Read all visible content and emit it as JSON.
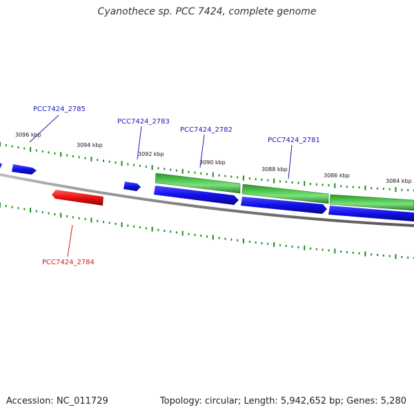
{
  "title": "Cyanothece sp. PCC 7424, complete genome",
  "footer": {
    "accession": "Accession: NC_011729",
    "summary": "Topology: circular; Length: 5,942,652 bp; Genes: 5,280"
  },
  "colors": {
    "background": "#ffffff",
    "backbone": "#8a8a8a",
    "tick": "#1c8a1c",
    "forward_cds": "#1010e8",
    "reverse_cds": "#e81010",
    "rna_feature": "#2f9a2f",
    "label_forward": "#1a1ab4",
    "label_reverse": "#c81e1e"
  },
  "scale": {
    "unit": "kbp",
    "labels": [
      "3096 kbp",
      "3094 kbp",
      "3092 kbp",
      "3090 kbp",
      "3088 kbp",
      "3086 kbp",
      "3084 kbp"
    ]
  },
  "genes": {
    "forward_labeled": [
      "PCC7424_2785",
      "PCC7424_2783",
      "PCC7424_2782",
      "PCC7424_2781"
    ],
    "reverse_labeled": [
      "PCC7424_2784"
    ]
  }
}
